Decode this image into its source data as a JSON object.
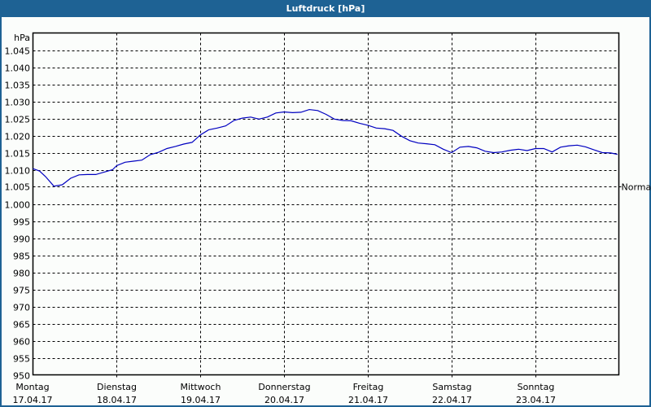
{
  "window": {
    "title": "Luftdruck [hPa]"
  },
  "colors": {
    "titlebar": "#1e6294",
    "line": "#0000c0",
    "grid": "#000000",
    "background": "#fbfdfb"
  },
  "chart_data": {
    "type": "line",
    "title": "Luftdruck [hPa]",
    "ylabel": "hPa",
    "xlabel": "",
    "ylim": [
      950,
      1050
    ],
    "y_ticks": [
      "950",
      "955",
      "960",
      "965",
      "970",
      "975",
      "980",
      "985",
      "990",
      "995",
      "1.000",
      "1.005",
      "1.010",
      "1.015",
      "1.020",
      "1.025",
      "1.030",
      "1.035",
      "1.040",
      "1.045"
    ],
    "y_tick_values": [
      950,
      955,
      960,
      965,
      970,
      975,
      980,
      985,
      990,
      995,
      1000,
      1005,
      1010,
      1015,
      1020,
      1025,
      1030,
      1035,
      1040,
      1045
    ],
    "categories": [
      {
        "day": "Montag",
        "date": "17.04.17"
      },
      {
        "day": "Dienstag",
        "date": "18.04.17"
      },
      {
        "day": "Mittwoch",
        "date": "19.04.17"
      },
      {
        "day": "Donnerstag",
        "date": "20.04.17"
      },
      {
        "day": "Freitag",
        "date": "21.04.17"
      },
      {
        "day": "Samstag",
        "date": "22.04.17"
      },
      {
        "day": "Sonntag",
        "date": "23.04.17"
      }
    ],
    "reference_line": {
      "label": "Normal",
      "value": 1005
    },
    "grid": true,
    "series": [
      {
        "name": "Luftdruck",
        "x_days": [
          0,
          0.08,
          0.15,
          0.25,
          0.35,
          0.45,
          0.55,
          0.65,
          0.75,
          0.85,
          0.95,
          1.0,
          1.1,
          1.2,
          1.3,
          1.4,
          1.5,
          1.6,
          1.7,
          1.8,
          1.9,
          2.0,
          2.1,
          2.2,
          2.3,
          2.4,
          2.5,
          2.6,
          2.7,
          2.8,
          2.9,
          3.0,
          3.1,
          3.2,
          3.3,
          3.4,
          3.5,
          3.6,
          3.7,
          3.8,
          3.9,
          4.0,
          4.1,
          4.2,
          4.3,
          4.4,
          4.5,
          4.6,
          4.7,
          4.8,
          4.9,
          5.0,
          5.1,
          5.2,
          5.3,
          5.4,
          5.5,
          5.6,
          5.7,
          5.8,
          5.9,
          6.0,
          6.1,
          6.2,
          6.3,
          6.4,
          6.5,
          6.6,
          6.7,
          6.8,
          6.9,
          6.98
        ],
        "values": [
          1010.3,
          1009.6,
          1008.0,
          1005.2,
          1005.6,
          1007.5,
          1008.5,
          1008.6,
          1008.6,
          1009.3,
          1010.0,
          1011.2,
          1012.2,
          1012.5,
          1012.8,
          1014.4,
          1015.1,
          1016.2,
          1016.8,
          1017.5,
          1018.0,
          1020.2,
          1021.7,
          1022.2,
          1022.8,
          1024.4,
          1025.1,
          1025.4,
          1024.8,
          1025.4,
          1026.6,
          1026.9,
          1026.7,
          1026.8,
          1027.6,
          1027.3,
          1026.2,
          1024.8,
          1024.4,
          1024.3,
          1023.6,
          1023.0,
          1022.2,
          1022.0,
          1021.5,
          1019.8,
          1018.5,
          1017.8,
          1017.6,
          1017.3,
          1016.0,
          1015.0,
          1016.6,
          1016.8,
          1016.4,
          1015.4,
          1015.0,
          1015.2,
          1015.7,
          1016.0,
          1015.6,
          1016.2,
          1016.2,
          1015.2,
          1016.6,
          1017.0,
          1017.2,
          1016.7,
          1015.8,
          1015.0,
          1014.9,
          1014.5
        ]
      }
    ]
  }
}
